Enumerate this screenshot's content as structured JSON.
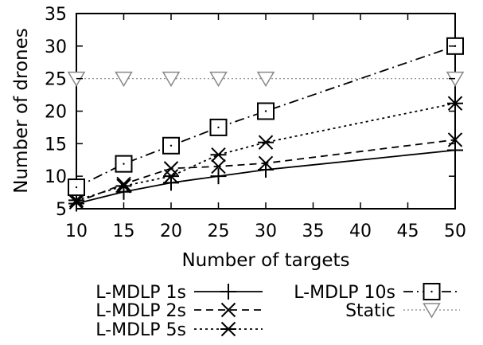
{
  "chart_data": {
    "type": "line",
    "title": "",
    "xlabel": "Number of targets",
    "ylabel": "Number of drones",
    "xlim": [
      10,
      50
    ],
    "ylim": [
      5,
      35
    ],
    "xticks": [
      10,
      15,
      20,
      25,
      30,
      35,
      40,
      45,
      50
    ],
    "yticks": [
      5,
      10,
      15,
      20,
      25,
      30,
      35
    ],
    "grid": false,
    "legend_position": "bottom",
    "series": [
      {
        "name": "L-MDLP 1s",
        "marker": "plus",
        "dash": "solid",
        "x": [
          10,
          15,
          20,
          25,
          30,
          50
        ],
        "y": [
          5.8,
          7.6,
          9.0,
          10.0,
          11.0,
          14.0
        ]
      },
      {
        "name": "L-MDLP 2s",
        "marker": "x",
        "dash": "dashed",
        "x": [
          10,
          15,
          20,
          25,
          30,
          50
        ],
        "y": [
          6.0,
          8.8,
          11.2,
          11.5,
          12.0,
          15.6
        ]
      },
      {
        "name": "L-MDLP 5s",
        "marker": "asterisk",
        "dash": "dotted",
        "x": [
          10,
          15,
          20,
          25,
          30,
          50
        ],
        "y": [
          6.3,
          8.5,
          10.0,
          13.3,
          15.2,
          21.2
        ]
      },
      {
        "name": "L-MDLP 10s",
        "marker": "square",
        "dash": "dashdot",
        "x": [
          10,
          15,
          20,
          25,
          30,
          50
        ],
        "y": [
          8.3,
          11.9,
          14.7,
          17.5,
          20.0,
          30.0
        ]
      },
      {
        "name": "Static",
        "marker": "triangle-down",
        "dash": "fine-dotted",
        "color": "#888888",
        "x": [
          10,
          15,
          20,
          25,
          30,
          50
        ],
        "y": [
          25,
          25,
          25,
          25,
          25,
          25
        ]
      }
    ]
  }
}
